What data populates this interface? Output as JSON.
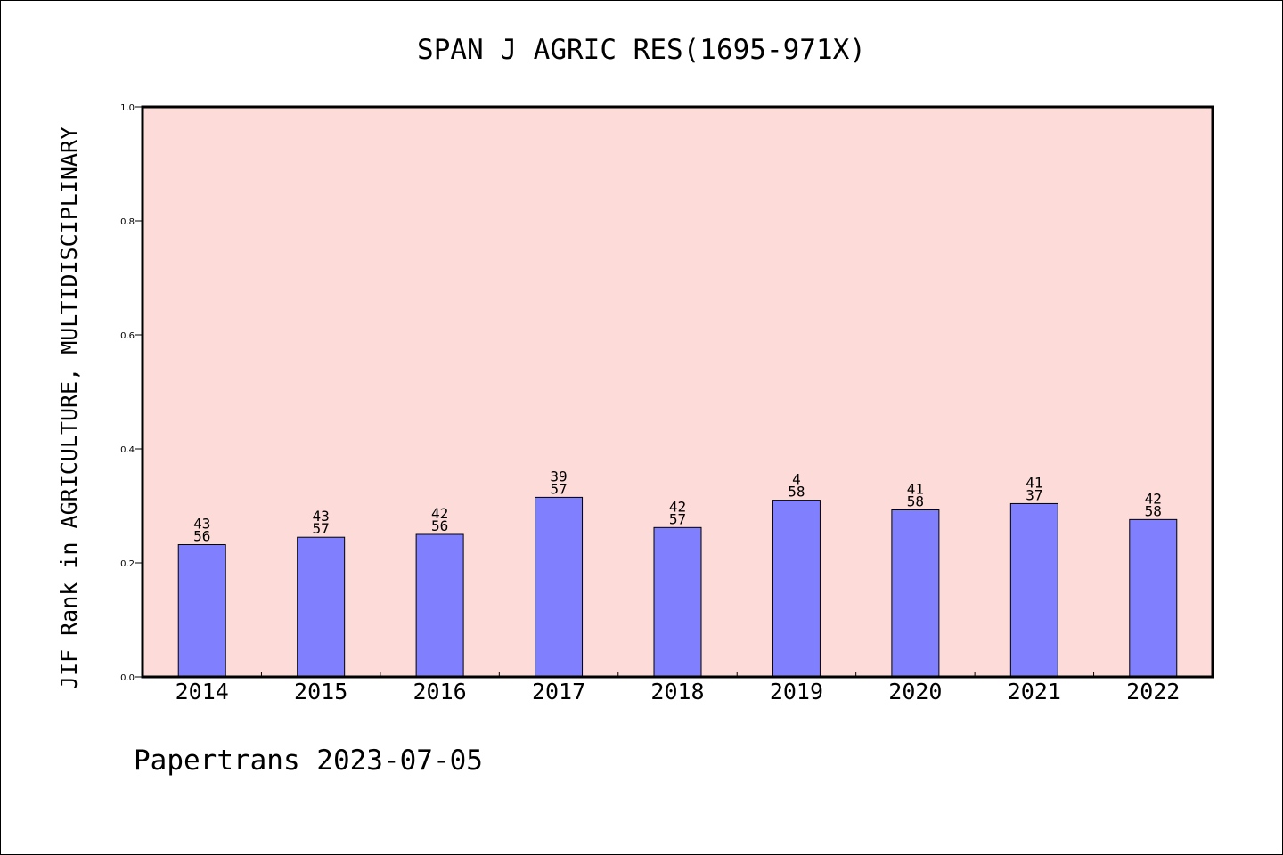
{
  "chart_data": {
    "type": "bar",
    "title": "SPAN J AGRIC RES(1695-971X)",
    "ylabel": "JIF Rank in AGRICULTURE, MULTIDISCIPLINARY",
    "xlabel": "",
    "categories": [
      "2014",
      "2015",
      "2016",
      "2017",
      "2018",
      "2019",
      "2020",
      "2021",
      "2022"
    ],
    "values": [
      0.232,
      0.245,
      0.25,
      0.315,
      0.262,
      0.31,
      0.293,
      0.304,
      0.276
    ],
    "labels_top": [
      "43",
      "43",
      "42",
      "39",
      "42",
      "4",
      "41",
      "41",
      "42"
    ],
    "labels_bottom": [
      "56",
      "57",
      "56",
      "57",
      "57",
      "58",
      "58",
      "37",
      "58"
    ],
    "ylim": [
      0,
      1.0
    ],
    "yticks": [
      "0.0",
      "0.2",
      "0.4",
      "0.6",
      "0.8",
      "1.0"
    ],
    "grid": false,
    "colors": {
      "plot_background": "#fddbd8",
      "bar_fill": "#8080ff",
      "bar_stroke": "#000000"
    }
  },
  "footer": "Papertrans 2023-07-05"
}
